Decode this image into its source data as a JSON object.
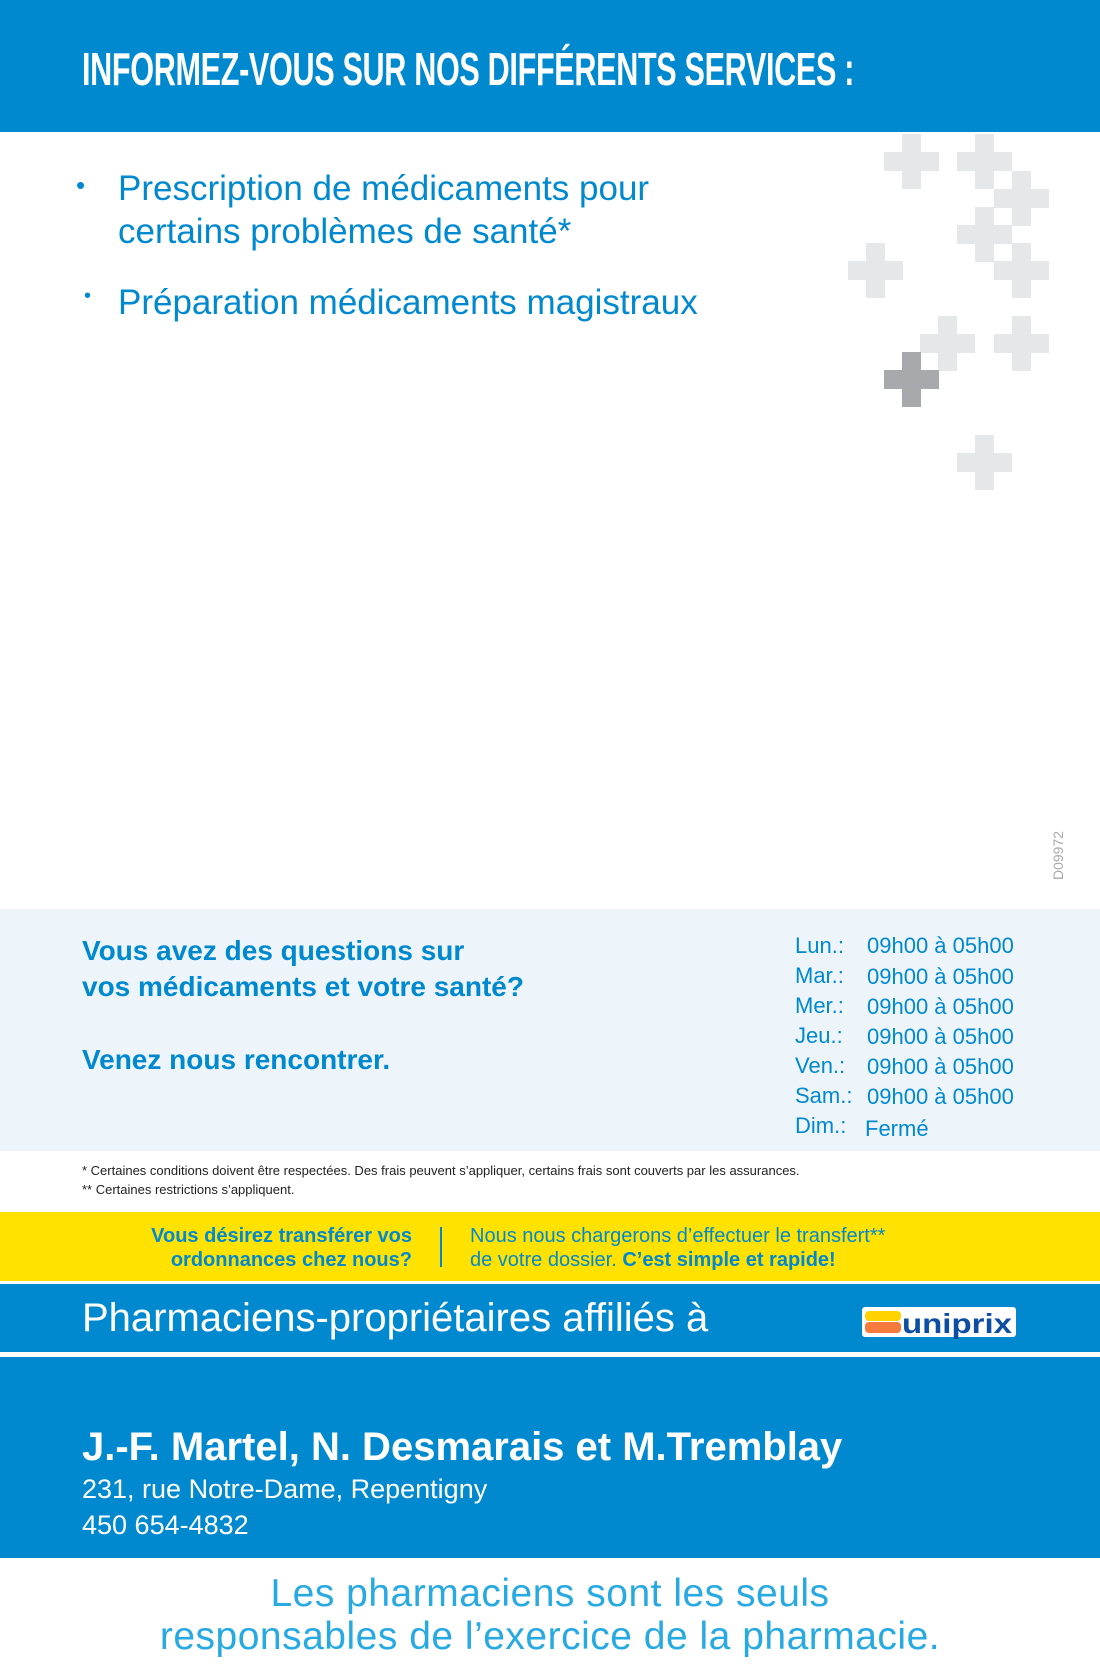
{
  "header": {
    "title": "INFORMEZ-VOUS SUR NOS DIFFÉRENTS SERVICES :"
  },
  "services": [
    {
      "lines": [
        "Prescription de médicaments pour",
        "certains problèmes de santé*"
      ]
    },
    {
      "lines": [
        "Préparation médicaments magistraux"
      ]
    }
  ],
  "code": "D09972",
  "info": {
    "question_lines": [
      "Vous avez des questions sur",
      "vos médicaments et votre santé?"
    ],
    "invite": "Venez nous rencontrer.",
    "hours": [
      {
        "day": "Lun.:",
        "time": "09h00 à 05h00"
      },
      {
        "day": "Mar.:",
        "time": "09h00 à 05h00"
      },
      {
        "day": "Mer.:",
        "time": "09h00 à 05h00"
      },
      {
        "day": "Jeu.:",
        "time": "09h00 à 05h00"
      },
      {
        "day": "Ven.:",
        "time": "09h00 à 05h00"
      },
      {
        "day": "Sam.:",
        "time": "09h00 à 05h00"
      },
      {
        "day": "Dim.:",
        "time": "Fermé"
      }
    ]
  },
  "footnotes": [
    "* Certaines conditions doivent être respectées. Des frais peuvent s’appliquer, certains frais sont couverts par les assurances.",
    "** Certaines restrictions s’appliquent."
  ],
  "transfer": {
    "question_lines": [
      "Vous désirez transférer vos",
      "ordonnances chez nous?"
    ],
    "line1": "Nous nous chargerons d’effectuer le transfert**",
    "line2_prefix": "de votre dossier. ",
    "line2_bold": "C’est simple et rapide!"
  },
  "affiliation": {
    "text": "Pharmaciens-propriétaires affiliés à",
    "logo": "uniprix"
  },
  "contact": {
    "names": "J.-F. Martel, N. Desmarais et M.Tremblay",
    "address": "231, rue Notre-Dame, Repentigny",
    "phone": "450 654-4832"
  },
  "tagline": [
    "Les pharmaciens sont les seuls",
    "responsables de l’exercice de la pharmacie."
  ],
  "colors": {
    "brand_blue": "#0089cf",
    "yellow": "#ffe200",
    "light_bg": "#edf4fa",
    "logo_navy": "#0d4ea2",
    "logo_orange": "#f47b3c",
    "logo_yellow": "#ffd200"
  }
}
